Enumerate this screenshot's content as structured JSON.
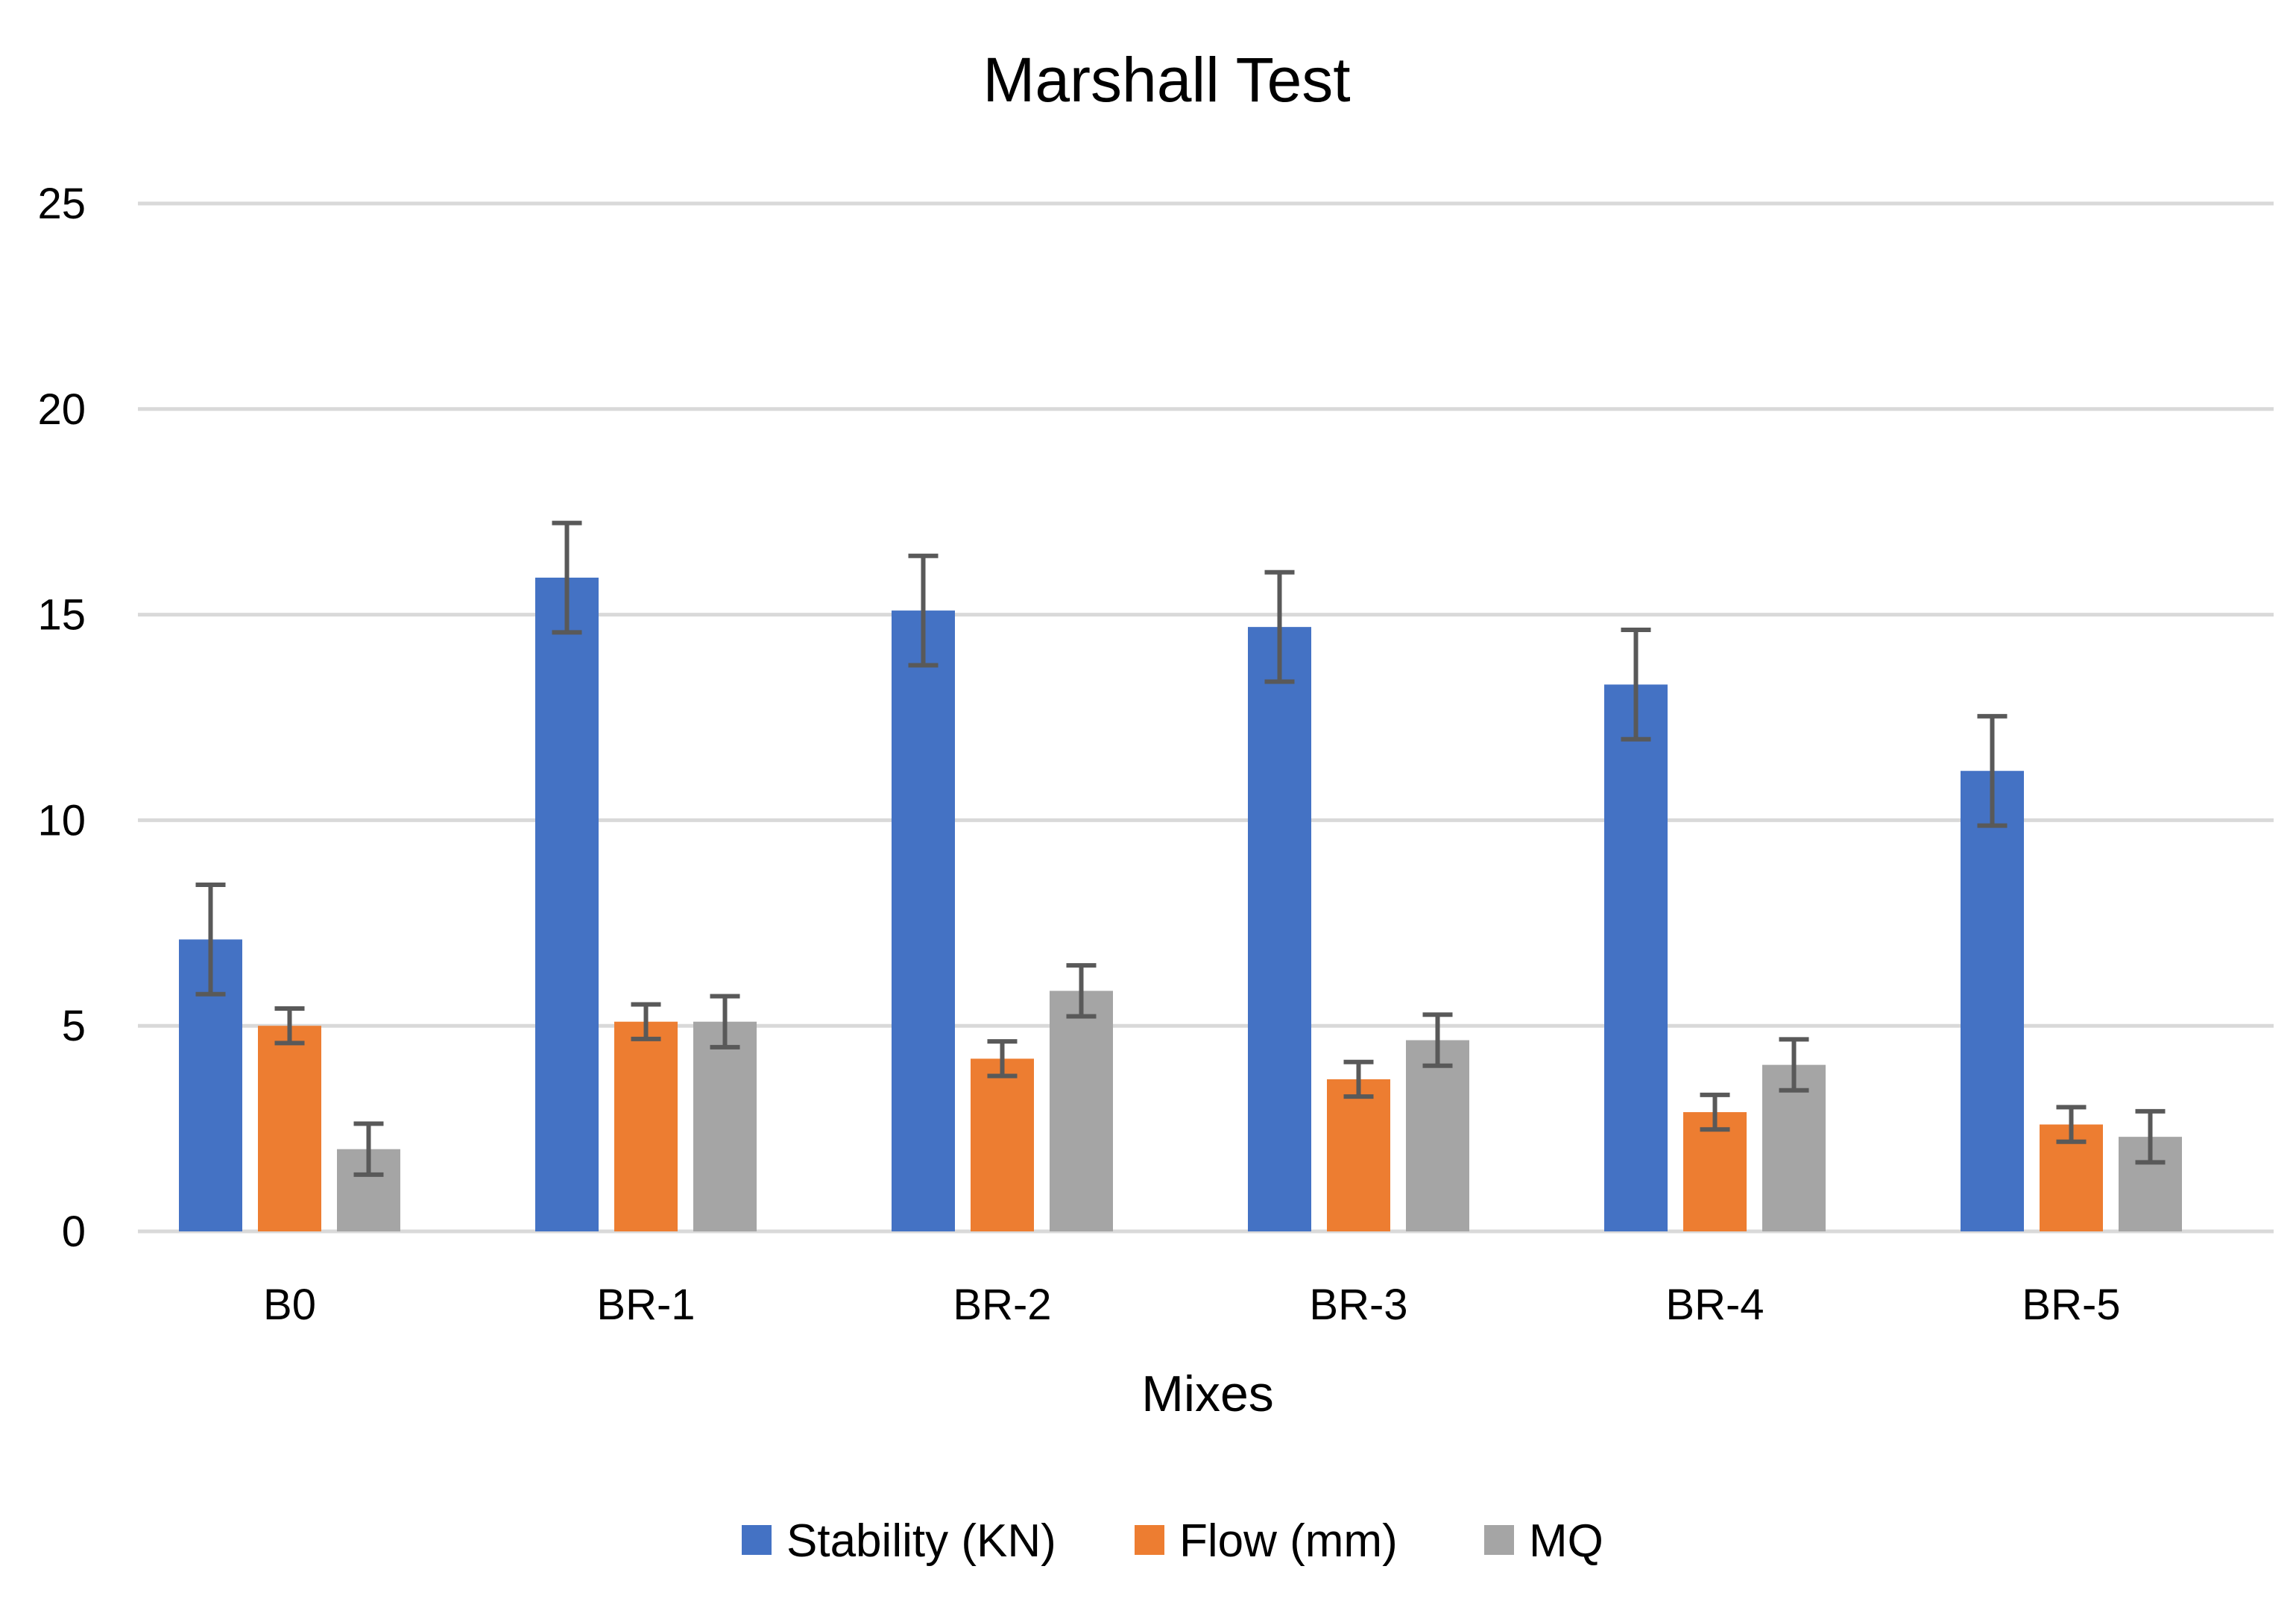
{
  "chart_data": {
    "type": "bar",
    "title": "Marshall Test",
    "xlabel": "Mixes",
    "ylabel": "",
    "ylim": [
      0,
      25
    ],
    "yticks": [
      0,
      5,
      10,
      15,
      20,
      25
    ],
    "grid": true,
    "legend_position": "bottom",
    "categories": [
      "B0",
      "BR-1",
      "BR-2",
      "BR-3",
      "BR-4",
      "BR-5"
    ],
    "series": [
      {
        "name": "Stability (KN)",
        "color": "#4472c4",
        "values": [
          7.1,
          15.9,
          15.1,
          14.7,
          13.3,
          11.2
        ],
        "errors": [
          1.33,
          1.33,
          1.33,
          1.33,
          1.33,
          1.33
        ]
      },
      {
        "name": "Flow (mm)",
        "color": "#ed7d31",
        "values": [
          5.0,
          5.1,
          4.2,
          3.7,
          2.9,
          2.6
        ],
        "errors": [
          0.42,
          0.42,
          0.42,
          0.42,
          0.42,
          0.42
        ]
      },
      {
        "name": "MQ",
        "color": "#a5a5a5",
        "values": [
          2.0,
          5.1,
          5.85,
          4.65,
          4.05,
          2.3
        ],
        "errors": [
          0.62,
          0.62,
          0.62,
          0.62,
          0.62,
          0.62
        ]
      }
    ]
  }
}
